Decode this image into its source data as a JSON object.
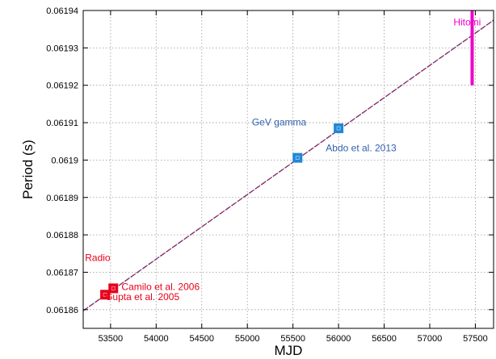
{
  "chart_data": {
    "type": "scatter",
    "title": "",
    "xlabel": "MJD",
    "ylabel": "Period (s)",
    "xlim": [
      53200,
      57700
    ],
    "ylim": [
      0.061855,
      0.06194
    ],
    "x_ticks": [
      53500,
      54000,
      54500,
      55000,
      55500,
      56000,
      56500,
      57000,
      57500
    ],
    "y_ticks": [
      0.06186,
      0.06187,
      0.06188,
      0.06189,
      0.0619,
      0.06191,
      0.06192,
      0.06193,
      0.06194
    ],
    "x_tick_labels": [
      "53500",
      "54000",
      "54500",
      "55000",
      "55500",
      "56000",
      "56500",
      "57000",
      "57500"
    ],
    "y_tick_labels": [
      "0.06186",
      "0.06187",
      "0.06188",
      "0.06189",
      "0.0619",
      "0.06191",
      "0.06192",
      "0.06193",
      "0.06194"
    ],
    "grid": true,
    "series": [
      {
        "group": "Radio",
        "color": "#e8001a",
        "marker": "square",
        "points": [
          {
            "x": 53440,
            "y": 0.061864,
            "label": "Gupta et al. 2005"
          },
          {
            "x": 53530,
            "y": 0.0618657,
            "label": "Camilo et al. 2006"
          }
        ]
      },
      {
        "group": "GeV gamma",
        "color": "#1e88d8",
        "marker": "square",
        "points": [
          {
            "x": 55550,
            "y": 0.0619006,
            "label": ""
          },
          {
            "x": 56000,
            "y": 0.0619085,
            "label": "Abdo et al. 2013"
          }
        ]
      },
      {
        "group": "Hitomi",
        "color": "#ee00cc",
        "marker": "errorbar",
        "points": [
          {
            "x": 57465,
            "y": 0.06193,
            "ymin": 0.06192,
            "ymax": 0.06194,
            "label": ""
          }
        ]
      }
    ],
    "fit_lines": [
      {
        "color": "#e8001a",
        "style": "dashed",
        "x": [
          53200,
          57700
        ],
        "y": [
          0.0618597,
          0.0619374
        ]
      },
      {
        "color": "#3050a0",
        "style": "dotted",
        "x": [
          53200,
          57700
        ],
        "y": [
          0.0618597,
          0.0619374
        ]
      }
    ],
    "annotations": [
      {
        "text": "Radio",
        "color": "#e8001a",
        "x": 53220,
        "y": 0.061873
      },
      {
        "text": "Camilo et al. 2006",
        "color": "#e8001a",
        "x": 53620,
        "y": 0.0618653
      },
      {
        "text": "Gupta et al. 2005",
        "color": "#e8001a",
        "x": 53440,
        "y": 0.0618625
      },
      {
        "text": "GeV gamma",
        "color": "#3060b0",
        "x": 55050,
        "y": 0.0619093
      },
      {
        "text": "Abdo et al. 2013",
        "color": "#3060b0",
        "x": 55860,
        "y": 0.0619024
      },
      {
        "text": "Hitomi",
        "color": "#ee00cc",
        "x": 57260,
        "y": 0.061936
      }
    ]
  }
}
